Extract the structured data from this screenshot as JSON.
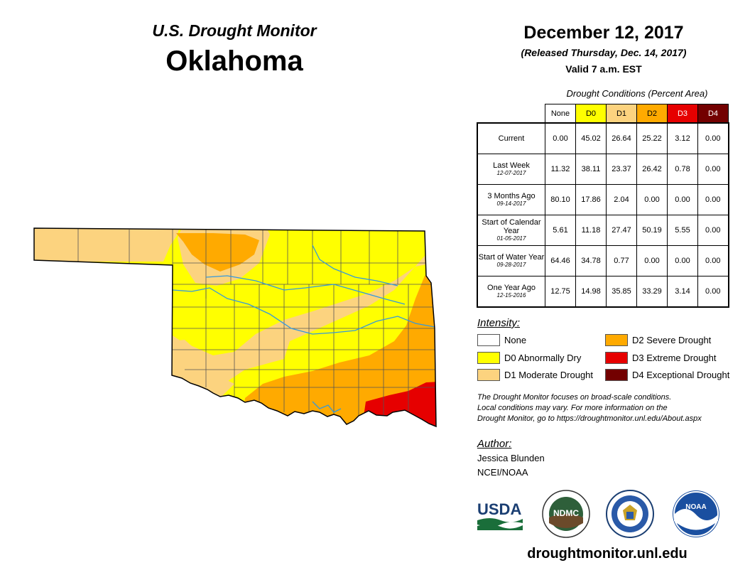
{
  "header": {
    "monitor_title": "U.S. Drought Monitor",
    "state": "Oklahoma",
    "date": "December 12, 2017",
    "released": "(Released Thursday, Dec. 14, 2017)",
    "valid": "Valid 7 a.m. EST"
  },
  "table": {
    "caption": "Drought Conditions (Percent Area)",
    "columns": [
      "None",
      "D0",
      "D1",
      "D2",
      "D3",
      "D4"
    ],
    "column_colors": [
      "#ffffff",
      "#ffff00",
      "#fcd37f",
      "#ffaa00",
      "#e60000",
      "#730000"
    ],
    "rows": [
      {
        "label": "Current",
        "date": "",
        "values": [
          "0.00",
          "45.02",
          "26.64",
          "25.22",
          "3.12",
          "0.00"
        ]
      },
      {
        "label": "Last Week",
        "date": "12-07-2017",
        "values": [
          "11.32",
          "38.11",
          "23.37",
          "26.42",
          "0.78",
          "0.00"
        ]
      },
      {
        "label": "3 Months Ago",
        "date": "09-14-2017",
        "values": [
          "80.10",
          "17.86",
          "2.04",
          "0.00",
          "0.00",
          "0.00"
        ]
      },
      {
        "label": "Start of Calendar Year",
        "date": "01-05-2017",
        "values": [
          "5.61",
          "11.18",
          "27.47",
          "50.19",
          "5.55",
          "0.00"
        ]
      },
      {
        "label": "Start of Water Year",
        "date": "09-28-2017",
        "values": [
          "64.46",
          "34.78",
          "0.77",
          "0.00",
          "0.00",
          "0.00"
        ]
      },
      {
        "label": "One Year Ago",
        "date": "12-15-2016",
        "values": [
          "12.75",
          "14.98",
          "35.85",
          "33.29",
          "3.14",
          "0.00"
        ]
      }
    ]
  },
  "legend": {
    "heading": "Intensity:",
    "items": [
      {
        "label": "None",
        "color": "#ffffff"
      },
      {
        "label": "D0 Abnormally Dry",
        "color": "#ffff00"
      },
      {
        "label": "D1 Moderate Drought",
        "color": "#fcd37f"
      },
      {
        "label": "D2 Severe Drought",
        "color": "#ffaa00"
      },
      {
        "label": "D3 Extreme Drought",
        "color": "#e60000"
      },
      {
        "label": "D4 Exceptional Drought",
        "color": "#730000"
      }
    ]
  },
  "note": {
    "line1": "The Drought Monitor focuses on broad-scale conditions.",
    "line2": "Local conditions may vary. For more information on the",
    "line3": "Drought Monitor, go to https://droughtmonitor.unl.edu/About.aspx"
  },
  "author": {
    "heading": "Author:",
    "name": "Jessica Blunden",
    "org": "NCEI/NOAA"
  },
  "logos": {
    "usda": "USDA",
    "ndmc": "NDMC",
    "noaa": "NOAA"
  },
  "footer": {
    "url": "droughtmonitor.unl.edu"
  },
  "colors": {
    "river": "#3399dd",
    "county_line": "#555555"
  }
}
